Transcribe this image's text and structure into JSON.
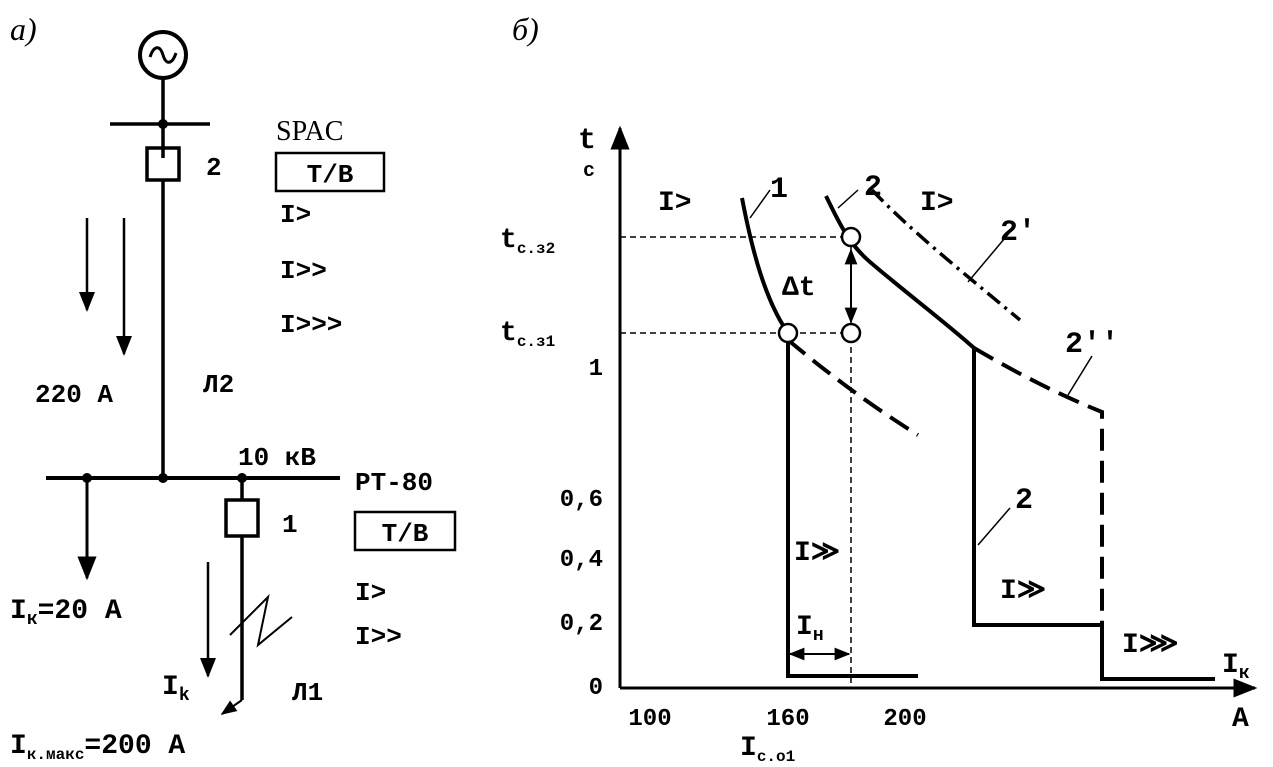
{
  "panel_a": {
    "label": "а)",
    "spac": {
      "name": "SPAC",
      "tb": "Т/В",
      "s1": "I>",
      "s2": "I>>",
      "s3": "I>>>"
    },
    "breaker2": "2",
    "current_220": "220 А",
    "line2": "Л2",
    "bus_voltage": "10 кВ",
    "rt80": {
      "name": "РТ-80",
      "tb": "Т/В",
      "s1": "I>",
      "s2": "I>>"
    },
    "breaker1": "1",
    "i_load": "I",
    "i_load_sub": "к",
    "i_load_rest": "=20 А",
    "ik": "I",
    "ik_sub": "k",
    "line1": "Л1",
    "ik_max": "I",
    "ik_max_sub": "к.макс",
    "ik_max_rest": "=200 А"
  },
  "panel_b": {
    "label": "б)",
    "t_axis": "t",
    "t_unit": "с",
    "ik_axis": "I",
    "ik_axis_sub": "к",
    "a_unit": "А",
    "tcs2": "t",
    "tcs2_sub": "с.з2",
    "tcs1": "t",
    "tcs1_sub": "с.з1",
    "delta_t": "Δt",
    "y_ticks": [
      "1",
      "0,6",
      "0,4",
      "0,2",
      "0"
    ],
    "x_ticks": [
      "100",
      "160",
      "200"
    ],
    "ico1": "I",
    "ico1_sub": "с.о1",
    "curve1": "1",
    "curve2_top": "2",
    "curve2_mid": "2",
    "curve2p": "2'",
    "curve2pp": "2''",
    "i_gt_1": "I>",
    "i_gt_2": "I>",
    "i_gtgt_1": "I≫",
    "i_gtgt_2": "I≫",
    "i_gtgtgt": "I⋙",
    "in_label": "I",
    "in_sub": "н"
  }
}
